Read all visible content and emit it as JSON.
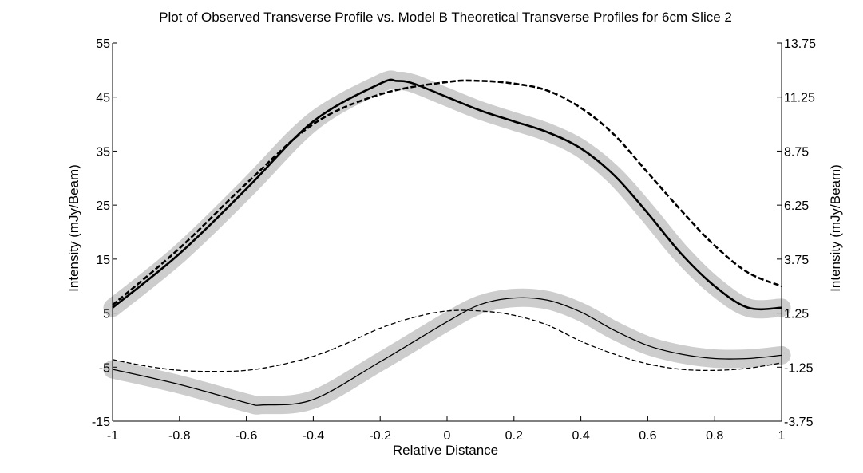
{
  "chart_data": {
    "type": "line",
    "title": "Plot of Observed Transverse Profile vs. Model B Theoretical Transverse Profiles for 6cm Slice 2",
    "xlabel": "Relative Distance",
    "ylabel": "Intensity (mJy/Beam)",
    "ylabel_right": "Intensity (mJy/Beam)",
    "xlim": [
      -1,
      1
    ],
    "ylim": [
      -15,
      55
    ],
    "ylim_right": [
      -3.75,
      13.75
    ],
    "grid": false,
    "x_ticks": [
      "-1",
      "-0.8",
      "-0.6",
      "-0.4",
      "-0.2",
      "0",
      "0.2",
      "0.4",
      "0.6",
      "0.8",
      "1"
    ],
    "y_ticks_left": [
      "-15",
      "-5",
      "5",
      "15",
      "25",
      "35",
      "45",
      "55"
    ],
    "y_ticks_right": [
      "-3.75",
      "-1.25",
      "1.25",
      "3.75",
      "6.25",
      "8.75",
      "11.25",
      "13.75"
    ],
    "series": [
      {
        "axis": "left",
        "style": "solid",
        "width": "thick",
        "uncertainty_band": true,
        "x": [
          -1,
          -0.8,
          -0.6,
          -0.4,
          -0.2,
          -0.15,
          -0.1,
          0,
          0.1,
          0.2,
          0.3,
          0.4,
          0.5,
          0.6,
          0.7,
          0.8,
          0.9,
          1
        ],
        "y": [
          6,
          16,
          28,
          40.5,
          47.5,
          48,
          47.5,
          45,
          42.5,
          40.5,
          38.5,
          35.5,
          30.5,
          23.5,
          16,
          10,
          6,
          6
        ]
      },
      {
        "axis": "left",
        "style": "dashed",
        "width": "thick",
        "uncertainty_band": false,
        "x": [
          -1,
          -0.8,
          -0.6,
          -0.4,
          -0.2,
          0,
          0.1,
          0.2,
          0.3,
          0.4,
          0.5,
          0.6,
          0.7,
          0.8,
          0.9,
          1
        ],
        "y": [
          6.5,
          17,
          29,
          40,
          45.5,
          47.8,
          48,
          47.5,
          46.2,
          43,
          38,
          31,
          24,
          17.5,
          12.5,
          10
        ]
      },
      {
        "axis": "right",
        "style": "solid",
        "width": "thin",
        "uncertainty_band": true,
        "x": [
          -1,
          -0.8,
          -0.6,
          -0.55,
          -0.4,
          -0.2,
          0,
          0.1,
          0.2,
          0.3,
          0.4,
          0.5,
          0.6,
          0.7,
          0.8,
          0.9,
          1
        ],
        "y": [
          -1.35,
          -2.05,
          -2.9,
          -3.0,
          -2.75,
          -1.0,
          0.85,
          1.65,
          1.95,
          1.85,
          1.3,
          0.45,
          -0.25,
          -0.65,
          -0.85,
          -0.85,
          -0.7
        ]
      },
      {
        "axis": "right",
        "style": "dashed",
        "width": "thin",
        "uncertainty_band": false,
        "x": [
          -1,
          -0.9,
          -0.8,
          -0.7,
          -0.6,
          -0.5,
          -0.4,
          -0.3,
          -0.2,
          -0.1,
          0,
          0.1,
          0.2,
          0.3,
          0.4,
          0.5,
          0.6,
          0.7,
          0.8,
          0.9,
          1
        ],
        "y": [
          -0.9,
          -1.2,
          -1.4,
          -1.45,
          -1.4,
          -1.15,
          -0.75,
          -0.15,
          0.55,
          1.05,
          1.35,
          1.35,
          1.15,
          0.7,
          -0.05,
          -0.65,
          -1.1,
          -1.35,
          -1.4,
          -1.3,
          -1.05
        ]
      }
    ]
  }
}
